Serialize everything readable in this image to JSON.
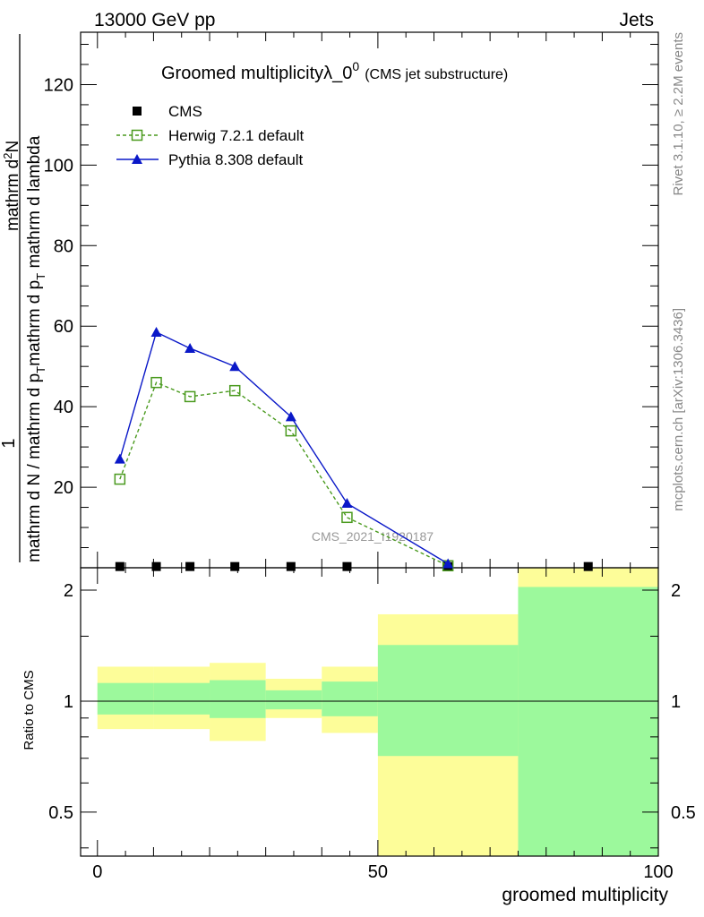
{
  "header": {
    "left": "13000 GeV pp",
    "right": "Jets"
  },
  "title": {
    "main": "Groomed multiplicityλ_0",
    "sup": "0",
    "sub": "(CMS jet substructure)"
  },
  "side_text": {
    "upper": "Rivet 3.1.10, ≥ 2.2M events",
    "lower": "mcplots.cern.ch [arXiv:1306.3436]"
  },
  "watermark": "CMS_2021_I1920187",
  "ylabel_main": {
    "numerator": "1",
    "denominator": "mathrm d N / mathrm d p",
    "denominator_sub": "T",
    "denominator_tail": "mathrm d p",
    "denominator_tail_sub": "T",
    "denominator_end": " mathrm d lambda",
    "numerator_right": "mathrm d",
    "numerator_right_sup": "2",
    "numerator_right_end": "N"
  },
  "ylabel_ratio": "Ratio to CMS",
  "xlabel": "groomed multiplicity",
  "legend": [
    {
      "label": "CMS",
      "color": "#000000",
      "marker": "filled-square"
    },
    {
      "label": "Herwig 7.2.1 default",
      "color": "#4a9a1e",
      "marker": "open-square",
      "dash": true
    },
    {
      "label": "Pythia 8.308 default",
      "color": "#0a18c8",
      "marker": "filled-triangle"
    }
  ],
  "chart_data": {
    "type": "line",
    "xlim": [
      -3,
      100
    ],
    "ylim_main": [
      0,
      133
    ],
    "ylim_ratio": [
      0.38,
      2.3
    ],
    "x_ticks": [
      0,
      50,
      100
    ],
    "y_ticks_main": [
      20,
      40,
      60,
      80,
      100,
      120
    ],
    "y_ticks_ratio": [
      0.5,
      1,
      2
    ],
    "x": [
      4,
      10.5,
      16.5,
      24.5,
      34.5,
      44.5,
      62.5,
      87.5
    ],
    "series": [
      {
        "name": "CMS",
        "values": [
          0.3,
          0.3,
          0.3,
          0.3,
          0.3,
          0.3,
          0.3,
          0.3
        ]
      },
      {
        "name": "Herwig 7.2.1 default",
        "values": [
          22,
          46,
          42.5,
          44,
          34,
          12.5,
          0.5,
          null
        ]
      },
      {
        "name": "Pythia 8.308 default",
        "values": [
          27,
          58.5,
          54.5,
          50,
          37.5,
          16,
          1,
          null
        ]
      }
    ],
    "ratio_bands": [
      {
        "x0": 0,
        "x1": 10,
        "green": [
          0.92,
          1.12
        ],
        "yellow": [
          0.84,
          1.24
        ]
      },
      {
        "x0": 10,
        "x1": 20,
        "green": [
          0.92,
          1.12
        ],
        "yellow": [
          0.84,
          1.24
        ]
      },
      {
        "x0": 20,
        "x1": 30,
        "green": [
          0.9,
          1.14
        ],
        "yellow": [
          0.78,
          1.27
        ]
      },
      {
        "x0": 30,
        "x1": 40,
        "green": [
          0.95,
          1.07
        ],
        "yellow": [
          0.9,
          1.15
        ]
      },
      {
        "x0": 40,
        "x1": 50,
        "green": [
          0.91,
          1.13
        ],
        "yellow": [
          0.82,
          1.24
        ]
      },
      {
        "x0": 50,
        "x1": 75,
        "green": [
          0.71,
          1.42
        ],
        "yellow": [
          0.38,
          1.72
        ]
      },
      {
        "x0": 75,
        "x1": 100,
        "green": [
          0.38,
          2.04
        ],
        "yellow": [
          0.38,
          2.3
        ]
      }
    ],
    "colors": {
      "green": "#9cf99c",
      "yellow": "#fdfd99"
    }
  }
}
